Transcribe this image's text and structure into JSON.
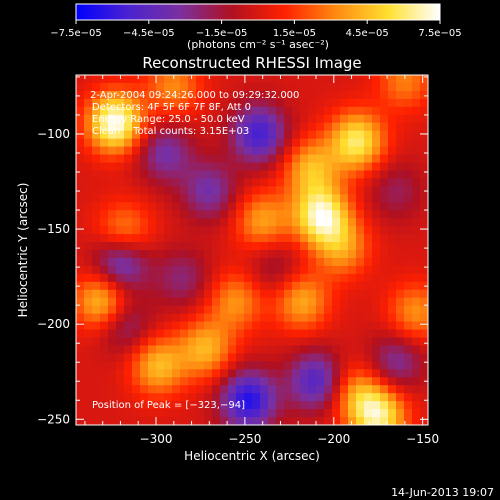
{
  "chart_data": {
    "type": "heatmap",
    "title": "Reconstructed RHESSI Image",
    "xlabel": "Heliocentric X (arcsec)",
    "ylabel": "Heliocentric Y (arcsec)",
    "xlim": [
      -345,
      -147
    ],
    "ylim": [
      -253,
      -69
    ],
    "x_ticks": [
      -300,
      -250,
      -200,
      -150
    ],
    "x_tick_labels": [
      "−300",
      "−250",
      "−200",
      "−150"
    ],
    "y_ticks": [
      -100,
      -150,
      -200,
      -250
    ],
    "y_tick_labels": [
      "−100",
      "−150",
      "−200",
      "−250"
    ],
    "colorbar": {
      "range": [
        -7.5e-05,
        7.5e-05
      ],
      "ticks": [
        -7.5e-05,
        -4.5e-05,
        -1.5e-05,
        1.5e-05,
        4.5e-05,
        7.5e-05
      ],
      "tick_labels": [
        "−7.5e−05",
        "−4.5e−05",
        "−1.5e−05",
        "1.5e−05",
        "4.5e−05",
        "7.5e−05"
      ],
      "unit_label": "(photons cm⁻² s⁻¹ asec⁻²)",
      "colormap": [
        "#0000ff",
        "#4a22d0",
        "#7a30a0",
        "#b01020",
        "#ff2000",
        "#ff8a10",
        "#ffe030",
        "#ffffff"
      ]
    },
    "annotations": [
      "2-Apr-2004 09:24:26.000 to 09:29:32.000",
      "Detectors: 4F 5F 6F 7F 8F, Att 0",
      "Energy Range: 25.0 - 50.0 keV",
      "Clean    Total counts: 3.15E+03"
    ],
    "peak_label": "Position of Peak = [−323,−94]",
    "peak_position": [
      -323,
      -94
    ],
    "sources": [
      {
        "x": -323,
        "y": -94,
        "value": 7.5e-05
      },
      {
        "x": -207,
        "y": -143,
        "value": 6.8e-05
      },
      {
        "x": -187,
        "y": -104,
        "value": 6e-05
      },
      {
        "x": -213,
        "y": -118,
        "value": 4.2e-05
      },
      {
        "x": -240,
        "y": -146,
        "value": 3.8e-05
      },
      {
        "x": -195,
        "y": -160,
        "value": 3.5e-05
      },
      {
        "x": -330,
        "y": -188,
        "value": 5.2e-05
      },
      {
        "x": -318,
        "y": -152,
        "value": 3.6e-05
      },
      {
        "x": -218,
        "y": -188,
        "value": 4e-05
      },
      {
        "x": -255,
        "y": -188,
        "value": 3.4e-05
      },
      {
        "x": -272,
        "y": -213,
        "value": 4.2e-05
      },
      {
        "x": -299,
        "y": -222,
        "value": 4.4e-05
      },
      {
        "x": -188,
        "y": -236,
        "value": 3.3e-05
      },
      {
        "x": -175,
        "y": -248,
        "value": 6.2e-05
      },
      {
        "x": -154,
        "y": -194,
        "value": 3.4e-05
      },
      {
        "x": -160,
        "y": -72,
        "value": 3e-05
      },
      {
        "x": -290,
        "y": -75,
        "value": 3.2e-05
      },
      {
        "x": -242,
        "y": -100,
        "value": -5.5e-05
      },
      {
        "x": -295,
        "y": -110,
        "value": -3.5e-05
      },
      {
        "x": -320,
        "y": -168,
        "value": -5e-05
      },
      {
        "x": -318,
        "y": -200,
        "value": -3e-05
      },
      {
        "x": -248,
        "y": -240,
        "value": -6.5e-05
      },
      {
        "x": -210,
        "y": -230,
        "value": -5e-05
      },
      {
        "x": -270,
        "y": -130,
        "value": -3.5e-05
      },
      {
        "x": -165,
        "y": -220,
        "value": -3.2e-05
      },
      {
        "x": -233,
        "y": -170,
        "value": -2e-05
      },
      {
        "x": -285,
        "y": -176,
        "value": -2.5e-05
      },
      {
        "x": -165,
        "y": -130,
        "value": -2e-05
      }
    ]
  },
  "footer": {
    "date": "14-Jun-2013 19:07"
  }
}
